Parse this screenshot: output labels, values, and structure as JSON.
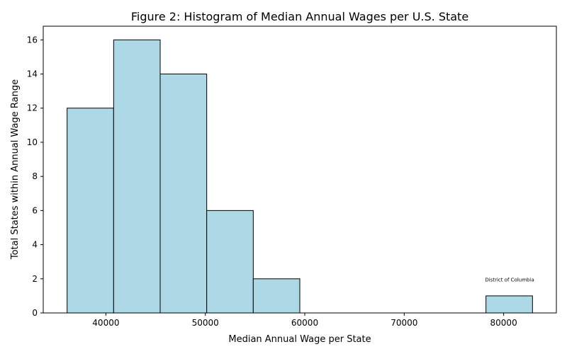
{
  "chart_data": {
    "type": "bar",
    "title": "Figure 2: Histogram of Median Annual Wages per U.S. State",
    "xlabel": "Median Annual Wage per State",
    "ylabel": "Total States within Annual Wage Range",
    "bins": [
      {
        "start": 36100,
        "end": 40780,
        "count": 12
      },
      {
        "start": 40780,
        "end": 45460,
        "count": 16
      },
      {
        "start": 45460,
        "end": 50140,
        "count": 14
      },
      {
        "start": 50140,
        "end": 54820,
        "count": 6
      },
      {
        "start": 54820,
        "end": 59500,
        "count": 2
      },
      {
        "start": 59500,
        "end": 64180,
        "count": 0
      },
      {
        "start": 64180,
        "end": 68860,
        "count": 0
      },
      {
        "start": 68860,
        "end": 73540,
        "count": 0
      },
      {
        "start": 73540,
        "end": 78220,
        "count": 0
      },
      {
        "start": 78220,
        "end": 82900,
        "count": 1
      }
    ],
    "xlim": [
      33700,
      85300
    ],
    "ylim": [
      0,
      16.8
    ],
    "xticks": [
      40000,
      50000,
      60000,
      70000,
      80000
    ],
    "yticks": [
      0,
      2,
      4,
      6,
      8,
      10,
      12,
      14,
      16
    ],
    "bar_color": "#add8e6",
    "edge_color": "#000000",
    "grid": false,
    "annotations": [
      {
        "text": "District of Columbia",
        "x": 80600,
        "y": 1.85
      }
    ]
  }
}
